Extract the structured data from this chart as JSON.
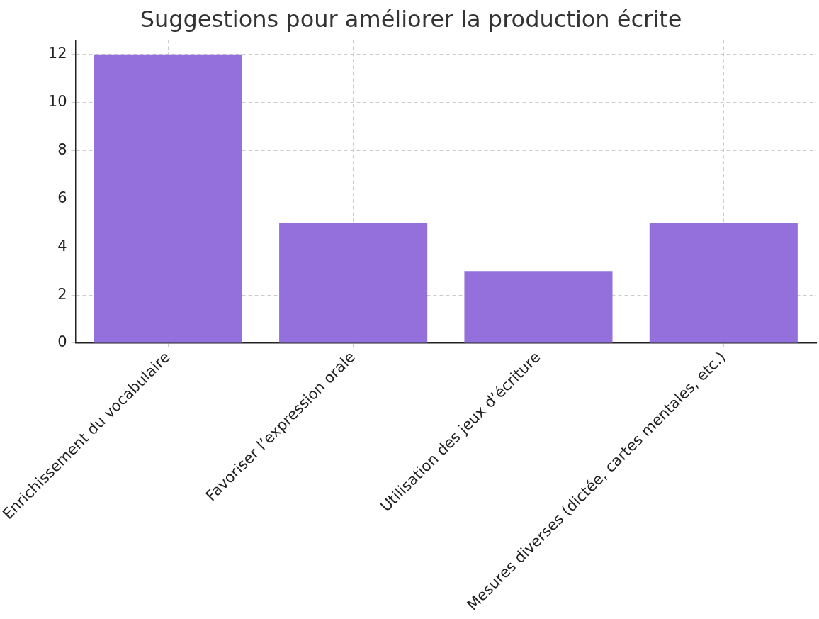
{
  "chart_data": {
    "type": "bar",
    "title": "Suggestions pour améliorer la production écrite",
    "categories": [
      "Enrichissement du vocabulaire",
      "Favoriser l’expression orale",
      "Utilisation des jeux d’écriture",
      "Mesures diverses (dictée, cartes mentales, etc.)"
    ],
    "values": [
      12,
      5,
      3,
      5
    ],
    "color": "#9370db",
    "ylim": [
      0,
      12.6
    ],
    "yticks": [
      0,
      2,
      4,
      6,
      8,
      10,
      12
    ],
    "grid": true,
    "legend": false
  }
}
